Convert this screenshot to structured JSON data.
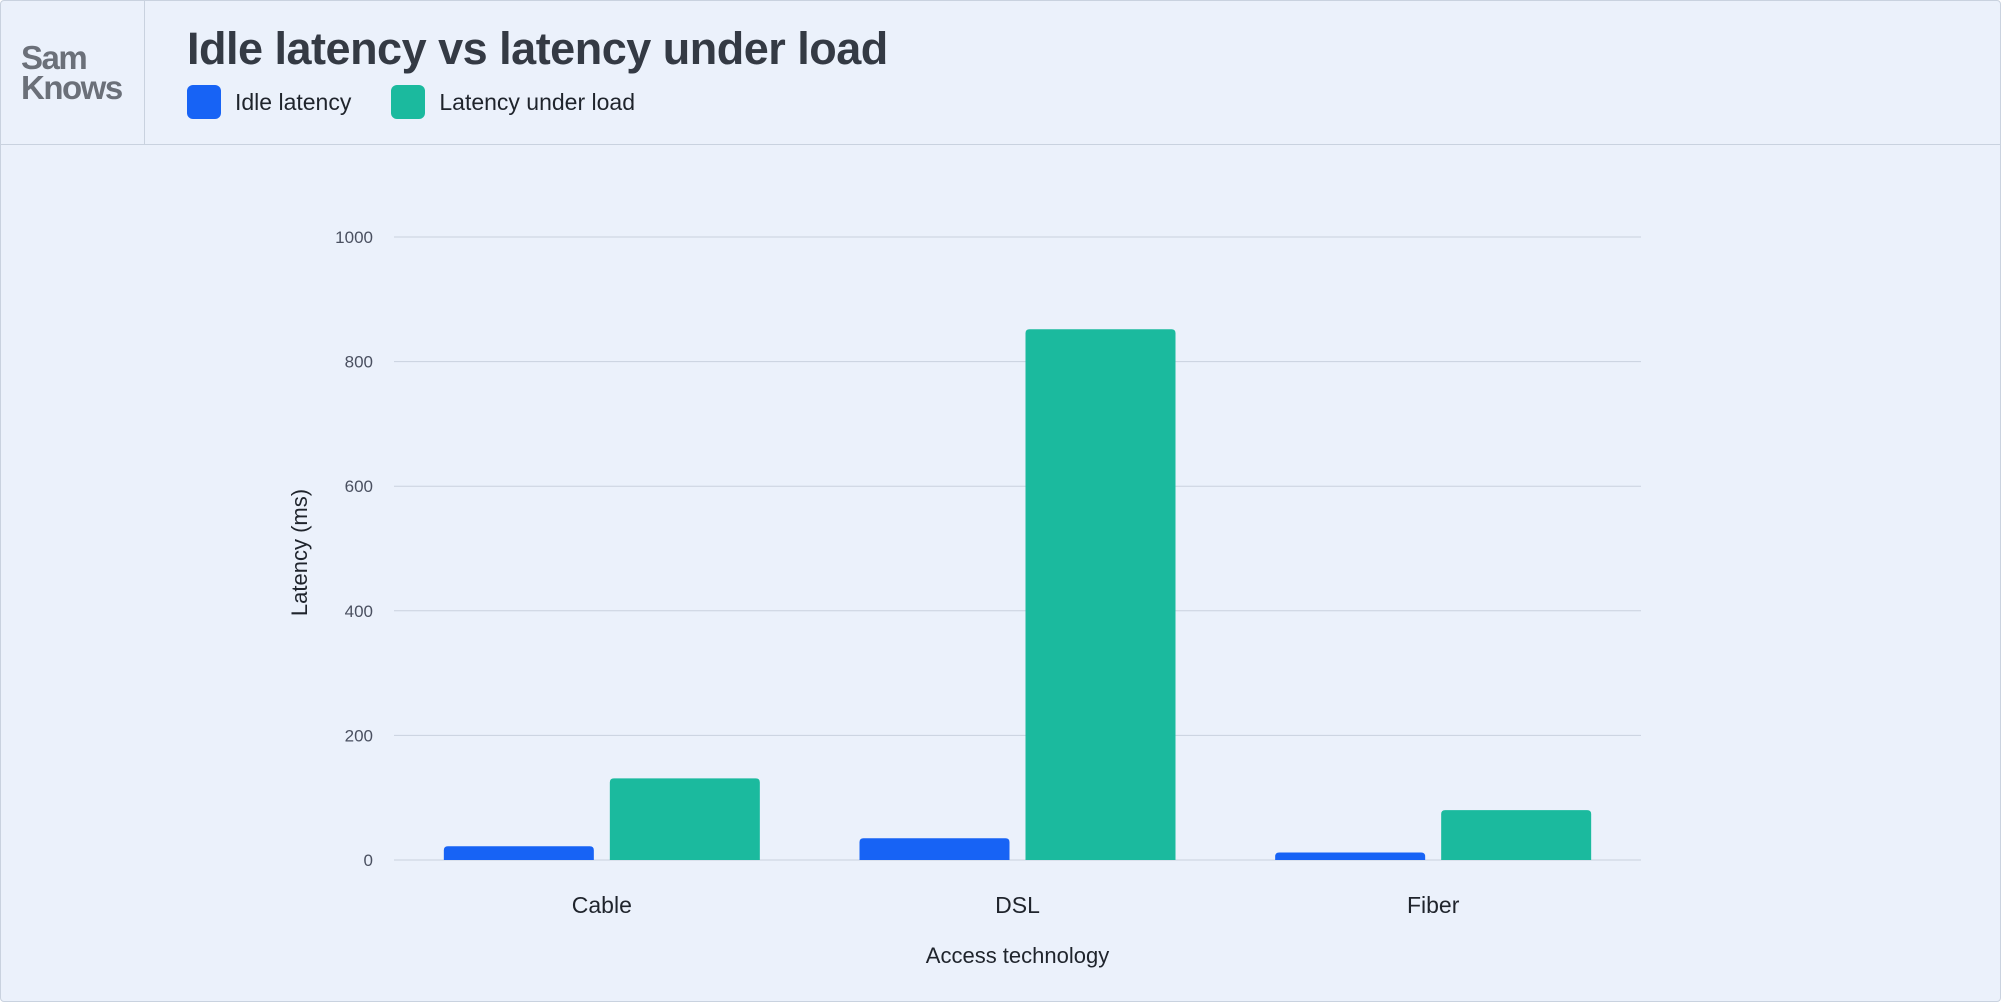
{
  "brand": {
    "logo_line1": "Sam",
    "logo_line2": "Knows"
  },
  "header": {
    "title": "Idle latency vs latency under load"
  },
  "colors": {
    "background": "#ebf1fb",
    "idle": "#1763f5",
    "load": "#1bba9e",
    "grid": "#c9d1de"
  },
  "chart_data": {
    "type": "bar",
    "title": "Idle latency vs latency under load",
    "xlabel": "Access technology",
    "ylabel": "Latency (ms)",
    "categories": [
      "Cable",
      "DSL",
      "Fiber"
    ],
    "series": [
      {
        "name": "Idle latency",
        "color": "#1763f5",
        "values": [
          22,
          35,
          12
        ]
      },
      {
        "name": "Latency under load",
        "color": "#1bba9e",
        "values": [
          131,
          852,
          80
        ]
      }
    ],
    "ylim": [
      0,
      1000
    ],
    "yticks": [
      0,
      200,
      400,
      600,
      800,
      1000
    ],
    "grid": true,
    "legend_position": "top-left"
  }
}
